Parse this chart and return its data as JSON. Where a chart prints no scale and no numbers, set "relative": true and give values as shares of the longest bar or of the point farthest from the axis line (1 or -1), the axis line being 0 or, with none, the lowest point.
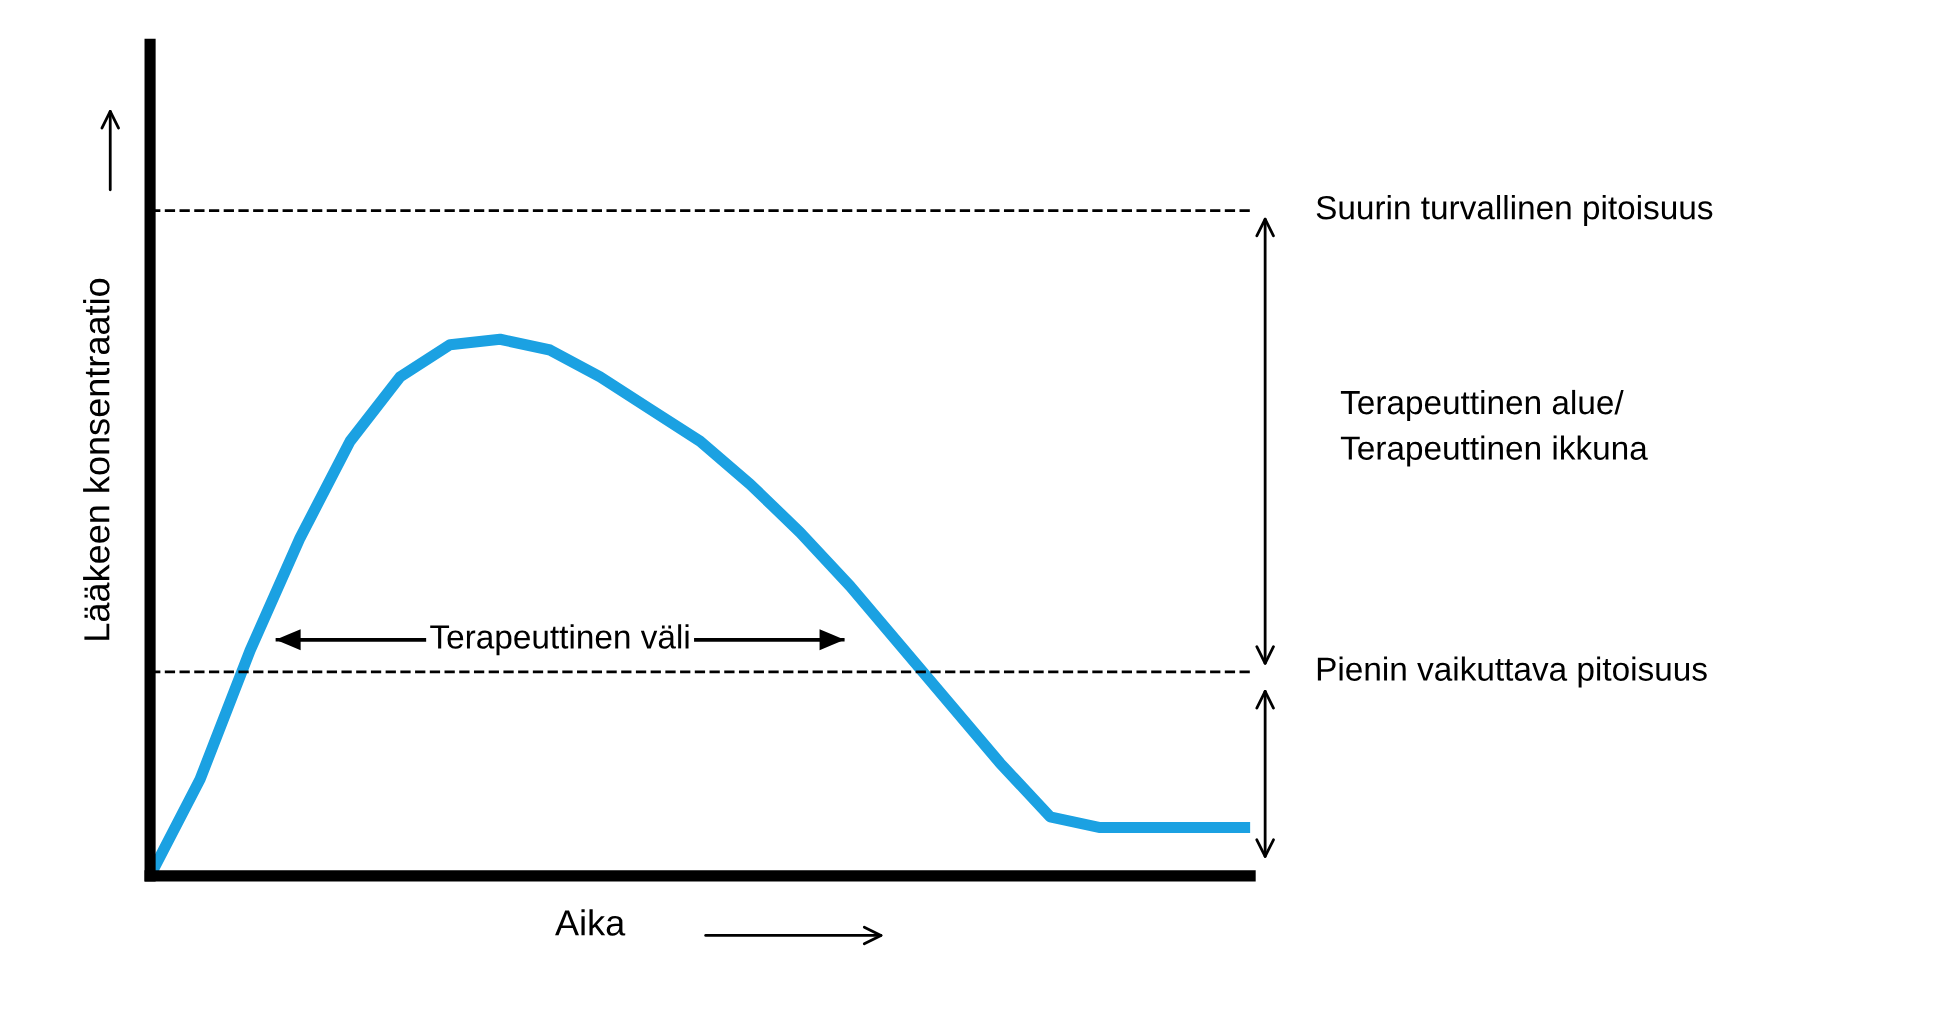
{
  "chart_data": {
    "type": "line",
    "relative": true,
    "xlabel": "Aika",
    "ylabel": "Lääkeen konsentraatio",
    "categories": [
      null,
      null,
      null,
      null,
      null,
      null,
      null,
      null,
      null,
      null,
      null,
      null,
      null,
      null,
      null,
      null,
      null,
      null,
      null,
      null,
      null,
      null,
      null
    ],
    "series": [
      {
        "color": "#1ba1e2",
        "values": [
          0,
          0.18,
          0.42,
          0.63,
          0.81,
          0.93,
          0.99,
          1.0,
          0.98,
          0.93,
          0.87,
          0.81,
          0.73,
          0.64,
          0.54,
          0.43,
          0.32,
          0.21,
          0.11,
          0.09,
          0.09,
          0.09,
          0.09
        ]
      }
    ],
    "ref_lines": [
      {
        "axis": "y",
        "value": 1.24,
        "label": "Suurin turvallinen pitoisuus",
        "line_style": "dashed",
        "color": "#000000"
      },
      {
        "axis": "y",
        "value": 0.38,
        "label": "Pienin vaikuttava pitoisuus",
        "line_style": "dashed",
        "color": "#000000"
      }
    ],
    "annotations": [
      "Terapeuttinen alue/\nTerapeuttinen ikkuna",
      "Terapeuttinen väli"
    ],
    "grid": false,
    "legend": false,
    "marker": "none",
    "line_style": "solid",
    "tick_labels": false
  }
}
